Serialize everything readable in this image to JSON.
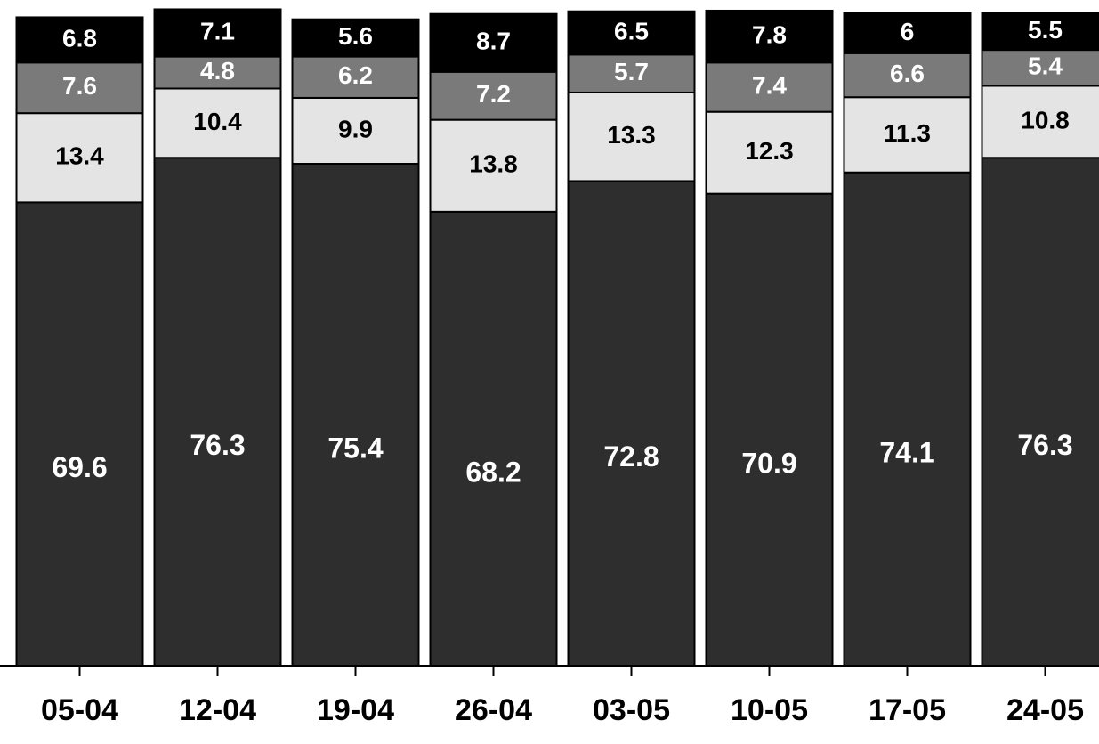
{
  "chart_data": {
    "type": "stacked_bar",
    "categories": [
      "05-04",
      "12-04",
      "19-04",
      "26-04",
      "03-05",
      "10-05",
      "17-05",
      "24-05"
    ],
    "series": [
      {
        "color": "#2e2e2e",
        "values": [
          69.6,
          76.3,
          75.4,
          68.2,
          72.8,
          70.9,
          74.1,
          76.3
        ]
      },
      {
        "color": "#e4e4e4",
        "values": [
          13.4,
          10.4,
          9.9,
          13.8,
          13.3,
          12.3,
          11.3,
          10.8
        ]
      },
      {
        "color": "#7a7a7a",
        "values": [
          7.6,
          4.8,
          6.2,
          7.2,
          5.7,
          7.4,
          6.6,
          5.4
        ]
      },
      {
        "color": "#000000",
        "values": [
          6.8,
          7.1,
          5.6,
          8.7,
          6.5,
          7.8,
          6,
          5.5
        ]
      }
    ],
    "ylim": [
      0,
      100
    ]
  }
}
